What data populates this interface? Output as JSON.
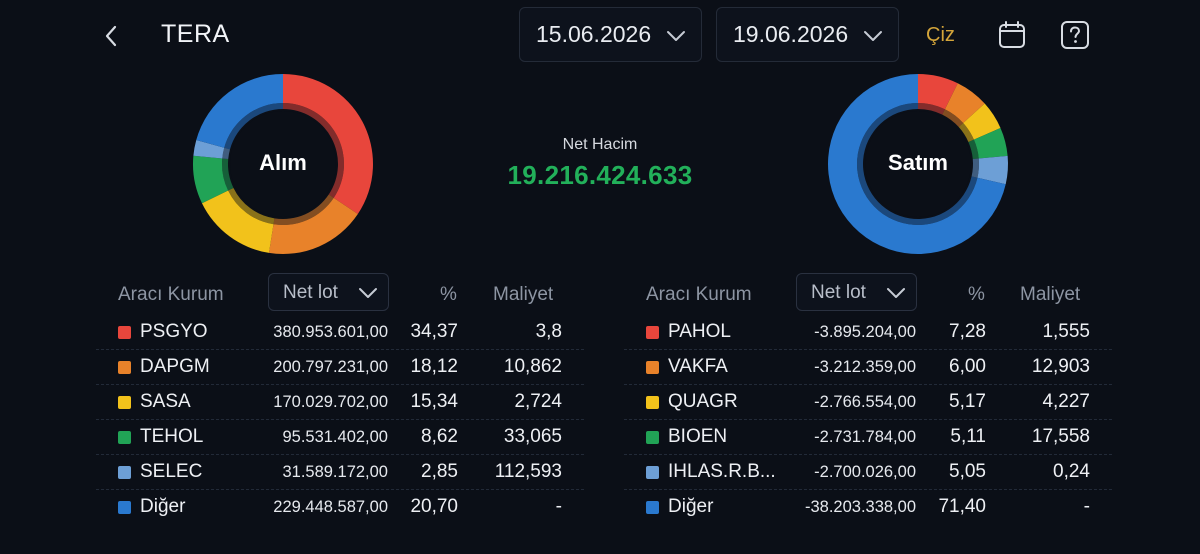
{
  "header": {
    "title": "TERA",
    "start_date": "15.06.2026",
    "end_date": "19.06.2026",
    "draw_label": "Çiz"
  },
  "summary": {
    "buy_label": "Alım",
    "sell_label": "Satım",
    "net_volume_label": "Net Hacim",
    "net_volume_value": "19.216.424.633"
  },
  "colors": {
    "red": "#e8463c",
    "orange": "#e8822a",
    "yellow": "#f2c21b",
    "green": "#21a356",
    "lightblue": "#6d9fd6",
    "blue": "#2a79cf",
    "accent_green": "#22b05a",
    "accent_gold": "#d4a53a"
  },
  "buy_table": {
    "col_broker": "Aracı Kurum",
    "col_select": "Net lot",
    "col_pct": "%",
    "col_cost": "Maliyet",
    "rows": [
      {
        "name": "PSGYO",
        "lot": "380.953.601,00",
        "pct": "34,37",
        "cost": "3,8",
        "color": "#e8463c"
      },
      {
        "name": "DAPGM",
        "lot": "200.797.231,00",
        "pct": "18,12",
        "cost": "10,862",
        "color": "#e8822a"
      },
      {
        "name": "SASA",
        "lot": "170.029.702,00",
        "pct": "15,34",
        "cost": "2,724",
        "color": "#f2c21b"
      },
      {
        "name": "TEHOL",
        "lot": "95.531.402,00",
        "pct": "8,62",
        "cost": "33,065",
        "color": "#21a356"
      },
      {
        "name": "SELEC",
        "lot": "31.589.172,00",
        "pct": "2,85",
        "cost": "112,593",
        "color": "#6d9fd6"
      },
      {
        "name": "Diğer",
        "lot": "229.448.587,00",
        "pct": "20,70",
        "cost": "-",
        "color": "#2a79cf"
      }
    ]
  },
  "sell_table": {
    "col_broker": "Aracı Kurum",
    "col_select": "Net lot",
    "col_pct": "%",
    "col_cost": "Maliyet",
    "rows": [
      {
        "name": "PAHOL",
        "lot": "-3.895.204,00",
        "pct": "7,28",
        "cost": "1,555",
        "color": "#e8463c"
      },
      {
        "name": "VAKFA",
        "lot": "-3.212.359,00",
        "pct": "6,00",
        "cost": "12,903",
        "color": "#e8822a"
      },
      {
        "name": "QUAGR",
        "lot": "-2.766.554,00",
        "pct": "5,17",
        "cost": "4,227",
        "color": "#f2c21b"
      },
      {
        "name": "BIOEN",
        "lot": "-2.731.784,00",
        "pct": "5,11",
        "cost": "17,558",
        "color": "#21a356"
      },
      {
        "name": "IHLAS.R.B...",
        "lot": "-2.700.026,00",
        "pct": "5,05",
        "cost": "0,24",
        "color": "#6d9fd6"
      },
      {
        "name": "Diğer",
        "lot": "-38.203.338,00",
        "pct": "71,40",
        "cost": "-",
        "color": "#2a79cf"
      }
    ]
  }
}
